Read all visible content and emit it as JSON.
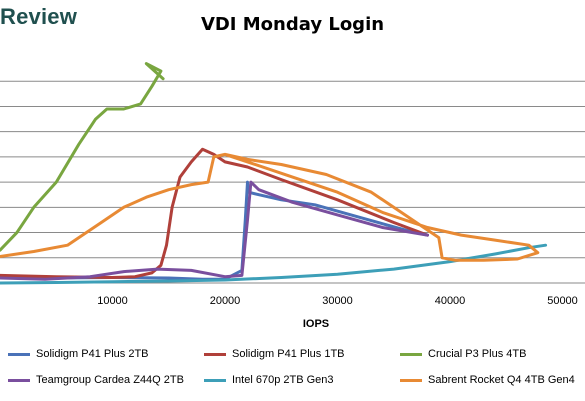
{
  "logo": "Review",
  "chart_data": {
    "type": "line",
    "title": "VDI Monday Login",
    "xlabel": "IOPS",
    "ylabel": "",
    "xlim": [
      0,
      52000
    ],
    "ylim": [
      0,
      9
    ],
    "xticks": [
      10000,
      20000,
      30000,
      40000,
      50000
    ],
    "xtick_labels": [
      "10000",
      "20000",
      "30000",
      "40000",
      "50000"
    ],
    "grid": "horizontal",
    "legend_position": "bottom",
    "series": [
      {
        "name": "Solidigm P41 Plus 2TB",
        "color": "#4a72b8",
        "points": [
          [
            0,
            0.25
          ],
          [
            5000,
            0.2
          ],
          [
            10000,
            0.22
          ],
          [
            15000,
            0.2
          ],
          [
            18000,
            0.15
          ],
          [
            20000,
            0.15
          ],
          [
            21500,
            0.5
          ],
          [
            21800,
            2.5
          ],
          [
            22000,
            4.0
          ],
          [
            22100,
            3.6
          ],
          [
            23000,
            3.5
          ],
          [
            25000,
            3.3
          ],
          [
            28000,
            3.1
          ],
          [
            32000,
            2.6
          ],
          [
            36000,
            2.1
          ],
          [
            38000,
            1.9
          ]
        ]
      },
      {
        "name": "Solidigm P41 Plus 1TB",
        "color": "#b0403a",
        "points": [
          [
            0,
            0.3
          ],
          [
            5000,
            0.25
          ],
          [
            10000,
            0.22
          ],
          [
            12000,
            0.25
          ],
          [
            13500,
            0.4
          ],
          [
            14300,
            0.7
          ],
          [
            14800,
            1.5
          ],
          [
            15300,
            3.0
          ],
          [
            16000,
            4.2
          ],
          [
            17000,
            4.8
          ],
          [
            18000,
            5.3
          ],
          [
            19000,
            5.1
          ],
          [
            20000,
            4.8
          ],
          [
            22000,
            4.6
          ],
          [
            25000,
            4.1
          ],
          [
            30000,
            3.3
          ],
          [
            35000,
            2.4
          ],
          [
            38000,
            1.9
          ]
        ]
      },
      {
        "name": "Crucial P3 Plus 4TB",
        "color": "#79a640",
        "points": [
          [
            0,
            1.3
          ],
          [
            1500,
            2.0
          ],
          [
            3000,
            3.0
          ],
          [
            5000,
            4.0
          ],
          [
            7000,
            5.5
          ],
          [
            8500,
            6.5
          ],
          [
            9500,
            6.9
          ],
          [
            11000,
            6.9
          ],
          [
            12500,
            7.1
          ],
          [
            13500,
            7.8
          ],
          [
            14300,
            8.4
          ],
          [
            13000,
            8.7
          ],
          [
            14500,
            8.1
          ]
        ]
      },
      {
        "name": "Teamgroup Cardea Z44Q 2TB",
        "color": "#7a4f9e",
        "points": [
          [
            0,
            0.2
          ],
          [
            4000,
            0.15
          ],
          [
            8000,
            0.25
          ],
          [
            11000,
            0.45
          ],
          [
            14000,
            0.55
          ],
          [
            17000,
            0.5
          ],
          [
            20000,
            0.25
          ],
          [
            21500,
            0.3
          ],
          [
            22000,
            2.5
          ],
          [
            22300,
            4.0
          ],
          [
            23000,
            3.7
          ],
          [
            26000,
            3.2
          ],
          [
            30000,
            2.7
          ],
          [
            34000,
            2.2
          ],
          [
            38000,
            1.9
          ]
        ]
      },
      {
        "name": "Intel 670p 2TB Gen3",
        "color": "#3d9fb8",
        "points": [
          [
            0,
            0.0
          ],
          [
            5000,
            0.02
          ],
          [
            10000,
            0.05
          ],
          [
            15000,
            0.08
          ],
          [
            20000,
            0.12
          ],
          [
            25000,
            0.22
          ],
          [
            30000,
            0.35
          ],
          [
            35000,
            0.55
          ],
          [
            40000,
            0.85
          ],
          [
            44000,
            1.15
          ],
          [
            47000,
            1.4
          ],
          [
            48500,
            1.5
          ]
        ]
      },
      {
        "name": "Sabrent Rocket Q4 4TB Gen4",
        "color": "#e88a34",
        "points": [
          [
            0,
            1.05
          ],
          [
            3000,
            1.25
          ],
          [
            6000,
            1.5
          ],
          [
            9000,
            2.4
          ],
          [
            11000,
            3.0
          ],
          [
            13000,
            3.4
          ],
          [
            15000,
            3.7
          ],
          [
            17000,
            3.9
          ],
          [
            18500,
            4.0
          ],
          [
            19000,
            5.0
          ],
          [
            20000,
            5.1
          ],
          [
            22000,
            4.8
          ],
          [
            26000,
            4.2
          ],
          [
            30000,
            3.6
          ],
          [
            34000,
            2.8
          ],
          [
            38000,
            2.2
          ],
          [
            41000,
            1.9
          ],
          [
            44000,
            1.7
          ],
          [
            47000,
            1.5
          ],
          [
            47800,
            1.2
          ],
          [
            46000,
            0.95
          ],
          [
            43000,
            0.9
          ],
          [
            40500,
            0.9
          ],
          [
            39300,
            1.0
          ],
          [
            39000,
            1.8
          ],
          [
            37000,
            2.4
          ],
          [
            33000,
            3.6
          ],
          [
            29000,
            4.3
          ],
          [
            25000,
            4.7
          ],
          [
            22000,
            4.9
          ],
          [
            20000,
            5.1
          ]
        ]
      }
    ]
  }
}
